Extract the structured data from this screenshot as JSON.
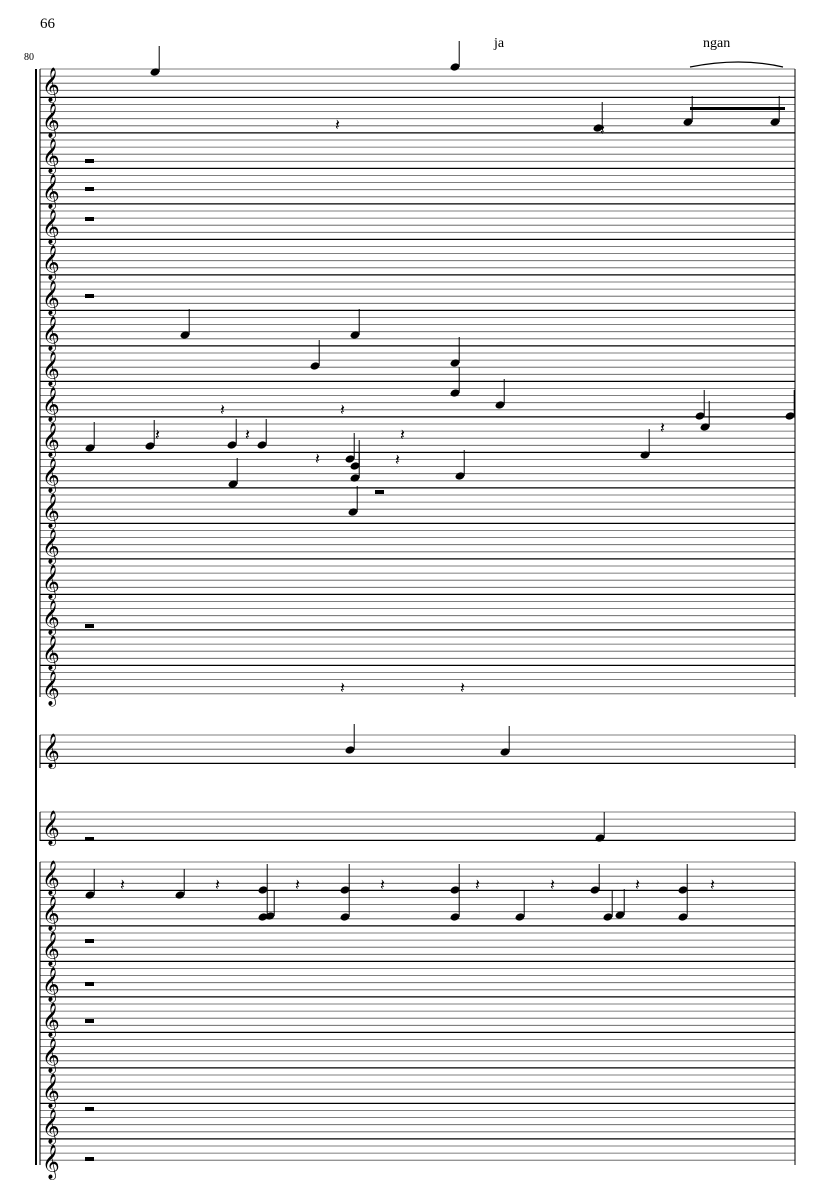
{
  "page": {
    "number": "66"
  },
  "system": {
    "measure_number": "80"
  },
  "lyrics": [
    {
      "text": "ja"
    },
    {
      "text": "ngan"
    }
  ],
  "colors": {
    "ink": "#000000",
    "background": "#ffffff"
  }
}
